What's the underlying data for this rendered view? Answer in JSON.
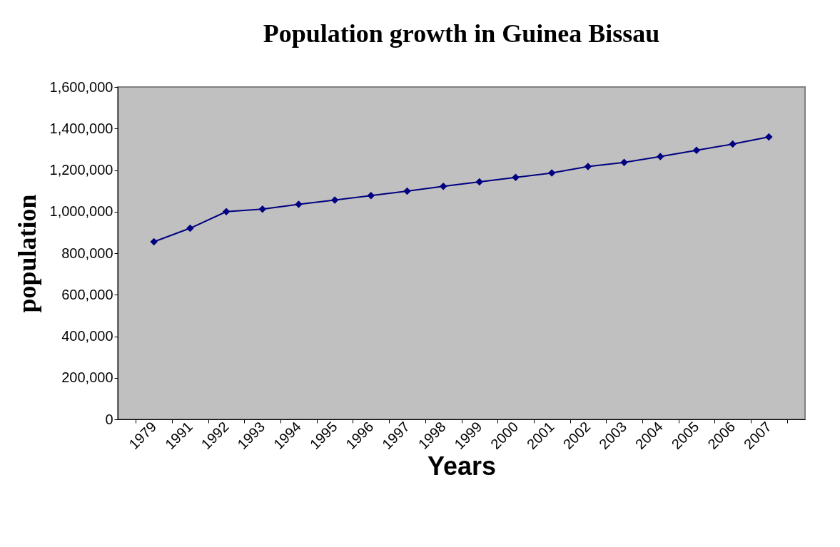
{
  "chart_data": {
    "type": "line",
    "title": "Population growth in Guinea Bissau",
    "xlabel": "Years",
    "ylabel": "population",
    "categories": [
      "1979",
      "1991",
      "1992",
      "1993",
      "1994",
      "1995",
      "1996",
      "1997",
      "1998",
      "1999",
      "2000",
      "2001",
      "2002",
      "2003",
      "2004",
      "2005",
      "2006",
      "2007"
    ],
    "series": [
      {
        "color": "#000080",
        "values": [
          855000,
          920000,
          1000000,
          1012000,
          1035000,
          1056000,
          1077000,
          1099000,
          1122000,
          1143000,
          1165000,
          1186000,
          1217000,
          1237000,
          1265000,
          1295000,
          1325000,
          1360000
        ]
      }
    ],
    "ylim": [
      0,
      1600000
    ],
    "yticks": [
      0,
      {
        "value": 200000,
        "label": "200,000"
      },
      {
        "value": 400000,
        "label": "400,000"
      },
      {
        "value": 600000,
        "label": "600,000"
      },
      {
        "value": 800000,
        "label": "800,000"
      },
      {
        "value": 1000000,
        "label": "1,000,000"
      },
      {
        "value": 1200000,
        "label": "1,200,000"
      },
      {
        "value": 1400000,
        "label": "1,400,000"
      },
      {
        "value": 1600000,
        "label": "1,600,000"
      }
    ],
    "grid": false,
    "legend": false,
    "marker": "diamond",
    "line_style": "solid"
  }
}
